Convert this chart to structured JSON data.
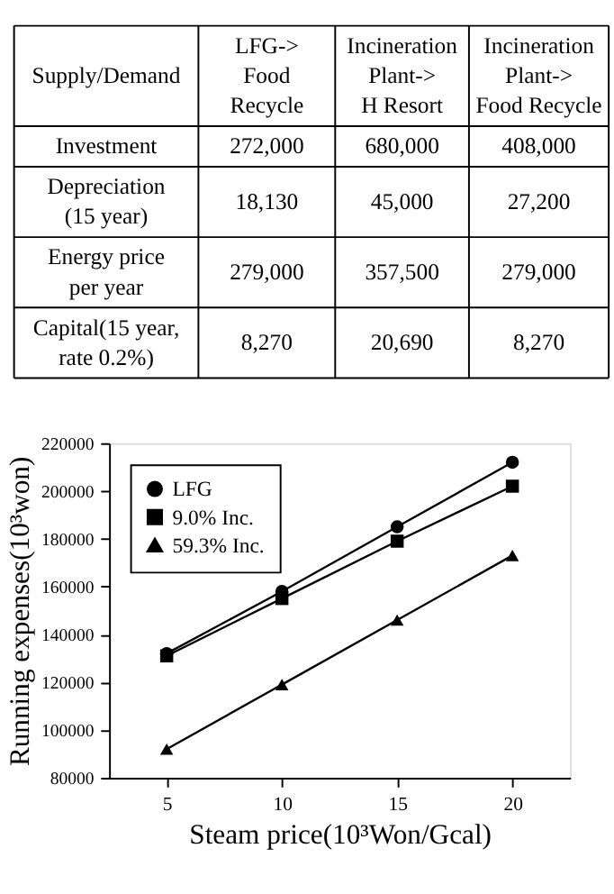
{
  "chart_data": [
    {
      "type": "other",
      "categories": [
        "Supply/Demand",
        "LFG->\nFood\nRecycle",
        "Incineration\nPlant->\nH Resort",
        "Incineration\nPlant->\nFood Recycle"
      ],
      "y_categories": [
        "Investment",
        "Depreciation\n(15 year)",
        "Energy price\nper year",
        "Capital(15 year,\nrate 0.2%)"
      ],
      "cell_labels": [
        [
          "272,000",
          "680,000",
          "408,000"
        ],
        [
          "18,130",
          "45,000",
          "27,200"
        ],
        [
          "279,000",
          "357,500",
          "279,000"
        ],
        [
          "8,270",
          "20,690",
          "8,270"
        ]
      ]
    },
    {
      "type": "line",
      "xlabel": "Steam price(10³Won/Gcal)",
      "ylabel": "Running expenses(10³won)",
      "x": [
        5,
        10,
        15,
        20
      ],
      "series": [
        {
          "name": "LFG",
          "color": "#000000",
          "marker": "circle",
          "values": [
            132000,
            158000,
            185000,
            212000
          ]
        },
        {
          "name": "9.0% Inc.",
          "color": "#000000",
          "marker": "square",
          "values": [
            131000,
            155000,
            179000,
            202000
          ]
        },
        {
          "name": "59.3% Inc.",
          "color": "#000000",
          "marker": "triangle",
          "values": [
            92000,
            119000,
            146000,
            173000
          ]
        }
      ],
      "xlim": [
        2.5,
        22.5
      ],
      "xticks": [
        5,
        10,
        15,
        20
      ],
      "ylim": [
        80000,
        220000
      ],
      "yticks": [
        80000,
        100000,
        120000,
        140000,
        160000,
        180000,
        200000,
        220000
      ],
      "grid": false,
      "legend": "top left",
      "line_style": "solid"
    }
  ]
}
